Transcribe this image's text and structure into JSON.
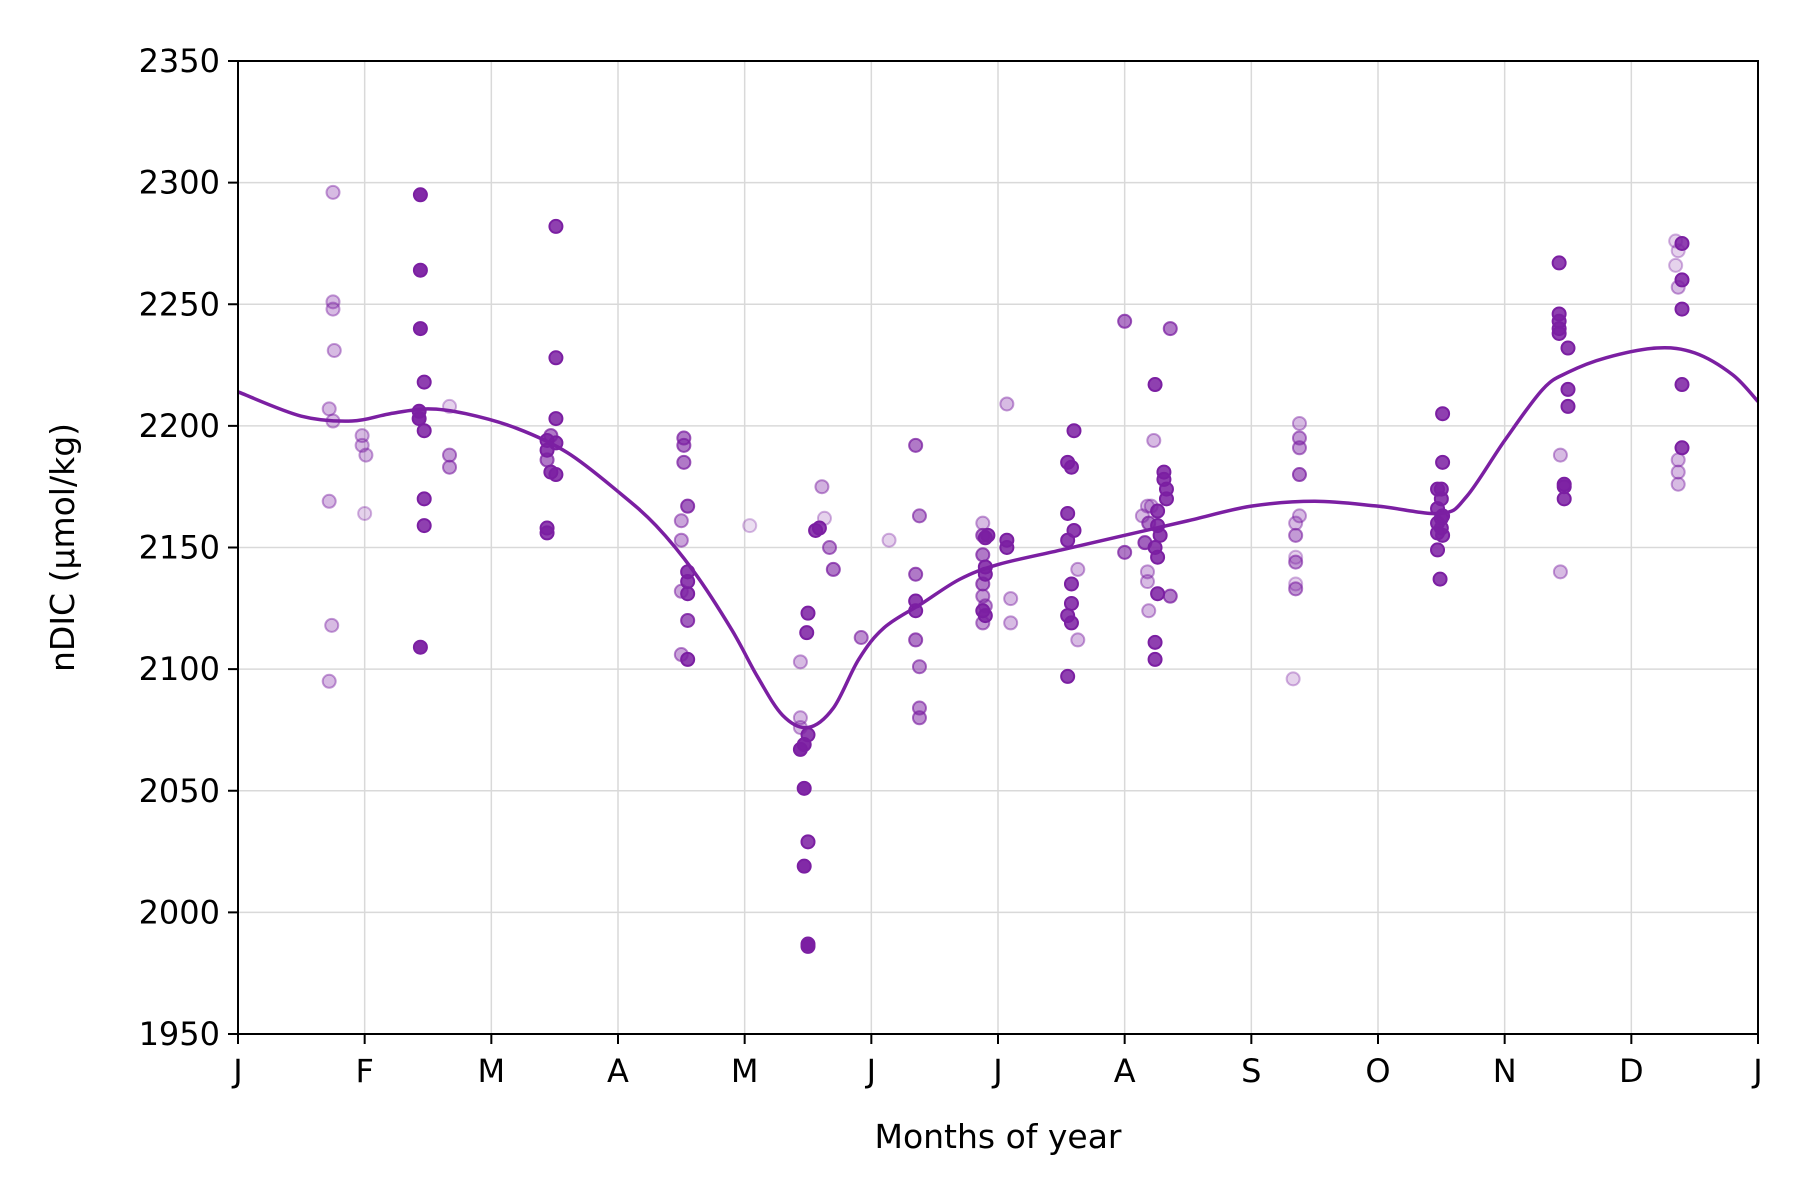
{
  "chart_data": {
    "type": "scatter",
    "title": "",
    "xlabel": "Months of year",
    "ylabel": "nDIC (μmol/kg)",
    "xlim": [
      0,
      12
    ],
    "ylim": [
      1950,
      2350
    ],
    "grid": true,
    "x_tick_labels": [
      "J",
      "F",
      "M",
      "A",
      "M",
      "J",
      "J",
      "A",
      "S",
      "O",
      "N",
      "D",
      "J"
    ],
    "y_ticks": [
      1950,
      2000,
      2050,
      2100,
      2150,
      2200,
      2250,
      2300,
      2350
    ],
    "colors": {
      "series": "#7b1fa2",
      "grid": "#d9d9d9",
      "axis": "#000000"
    },
    "points": [
      {
        "x": 0.75,
        "y": 2296,
        "a": 0.3
      },
      {
        "x": 0.75,
        "y": 2251,
        "a": 0.3
      },
      {
        "x": 0.75,
        "y": 2248,
        "a": 0.3
      },
      {
        "x": 0.76,
        "y": 2231,
        "a": 0.3
      },
      {
        "x": 0.72,
        "y": 2207,
        "a": 0.3
      },
      {
        "x": 0.75,
        "y": 2202,
        "a": 0.3
      },
      {
        "x": 0.72,
        "y": 2169,
        "a": 0.3
      },
      {
        "x": 0.74,
        "y": 2118,
        "a": 0.3
      },
      {
        "x": 0.72,
        "y": 2095,
        "a": 0.3
      },
      {
        "x": 0.98,
        "y": 2196,
        "a": 0.3
      },
      {
        "x": 0.98,
        "y": 2192,
        "a": 0.3
      },
      {
        "x": 1.01,
        "y": 2188,
        "a": 0.3
      },
      {
        "x": 1.0,
        "y": 2164,
        "a": 0.2
      },
      {
        "x": 1.44,
        "y": 2295,
        "a": 0.95
      },
      {
        "x": 1.44,
        "y": 2264,
        "a": 0.95
      },
      {
        "x": 1.44,
        "y": 2240,
        "a": 0.95
      },
      {
        "x": 1.47,
        "y": 2218,
        "a": 0.85
      },
      {
        "x": 1.43,
        "y": 2206,
        "a": 0.95
      },
      {
        "x": 1.43,
        "y": 2203,
        "a": 0.95
      },
      {
        "x": 1.47,
        "y": 2198,
        "a": 0.85
      },
      {
        "x": 1.47,
        "y": 2170,
        "a": 0.85
      },
      {
        "x": 1.47,
        "y": 2159,
        "a": 0.85
      },
      {
        "x": 1.44,
        "y": 2109,
        "a": 0.95
      },
      {
        "x": 1.67,
        "y": 2208,
        "a": 0.2
      },
      {
        "x": 1.67,
        "y": 2188,
        "a": 0.45
      },
      {
        "x": 1.67,
        "y": 2183,
        "a": 0.45
      },
      {
        "x": 2.44,
        "y": 2194,
        "a": 0.85
      },
      {
        "x": 2.44,
        "y": 2190,
        "a": 0.85
      },
      {
        "x": 2.47,
        "y": 2196,
        "a": 0.6
      },
      {
        "x": 2.44,
        "y": 2186,
        "a": 0.6
      },
      {
        "x": 2.47,
        "y": 2181,
        "a": 0.85
      },
      {
        "x": 2.44,
        "y": 2158,
        "a": 0.85
      },
      {
        "x": 2.44,
        "y": 2156,
        "a": 0.85
      },
      {
        "x": 2.51,
        "y": 2282,
        "a": 0.85
      },
      {
        "x": 2.51,
        "y": 2228,
        "a": 0.85
      },
      {
        "x": 2.51,
        "y": 2203,
        "a": 0.85
      },
      {
        "x": 2.51,
        "y": 2193,
        "a": 0.85
      },
      {
        "x": 2.51,
        "y": 2180,
        "a": 0.85
      },
      {
        "x": 3.52,
        "y": 2195,
        "a": 0.6
      },
      {
        "x": 3.52,
        "y": 2192,
        "a": 0.6
      },
      {
        "x": 3.52,
        "y": 2185,
        "a": 0.6
      },
      {
        "x": 3.55,
        "y": 2167,
        "a": 0.7
      },
      {
        "x": 3.5,
        "y": 2161,
        "a": 0.4
      },
      {
        "x": 3.5,
        "y": 2153,
        "a": 0.4
      },
      {
        "x": 3.55,
        "y": 2140,
        "a": 0.85
      },
      {
        "x": 3.55,
        "y": 2136,
        "a": 0.85
      },
      {
        "x": 3.5,
        "y": 2132,
        "a": 0.4
      },
      {
        "x": 3.55,
        "y": 2131,
        "a": 0.85
      },
      {
        "x": 3.55,
        "y": 2120,
        "a": 0.7
      },
      {
        "x": 3.5,
        "y": 2106,
        "a": 0.4
      },
      {
        "x": 3.55,
        "y": 2104,
        "a": 0.85
      },
      {
        "x": 4.04,
        "y": 2159,
        "a": 0.15
      },
      {
        "x": 4.44,
        "y": 2103,
        "a": 0.3
      },
      {
        "x": 4.44,
        "y": 2080,
        "a": 0.3
      },
      {
        "x": 4.44,
        "y": 2076,
        "a": 0.3
      },
      {
        "x": 4.5,
        "y": 2073,
        "a": 0.85
      },
      {
        "x": 4.44,
        "y": 2067,
        "a": 0.95
      },
      {
        "x": 4.47,
        "y": 2069,
        "a": 0.95
      },
      {
        "x": 4.47,
        "y": 2051,
        "a": 0.95
      },
      {
        "x": 4.5,
        "y": 2029,
        "a": 0.85
      },
      {
        "x": 4.47,
        "y": 2019,
        "a": 0.95
      },
      {
        "x": 4.5,
        "y": 1987,
        "a": 0.95
      },
      {
        "x": 4.5,
        "y": 1986,
        "a": 0.95
      },
      {
        "x": 4.5,
        "y": 2123,
        "a": 0.85
      },
      {
        "x": 4.49,
        "y": 2115,
        "a": 0.85
      },
      {
        "x": 4.56,
        "y": 2157,
        "a": 0.85
      },
      {
        "x": 4.59,
        "y": 2158,
        "a": 0.85
      },
      {
        "x": 4.63,
        "y": 2162,
        "a": 0.2
      },
      {
        "x": 4.61,
        "y": 2175,
        "a": 0.35
      },
      {
        "x": 4.67,
        "y": 2150,
        "a": 0.5
      },
      {
        "x": 4.7,
        "y": 2141,
        "a": 0.6
      },
      {
        "x": 4.92,
        "y": 2113,
        "a": 0.5
      },
      {
        "x": 5.14,
        "y": 2153,
        "a": 0.2
      },
      {
        "x": 5.35,
        "y": 2192,
        "a": 0.6
      },
      {
        "x": 5.38,
        "y": 2163,
        "a": 0.5
      },
      {
        "x": 5.35,
        "y": 2139,
        "a": 0.6
      },
      {
        "x": 5.35,
        "y": 2128,
        "a": 0.85
      },
      {
        "x": 5.35,
        "y": 2124,
        "a": 0.85
      },
      {
        "x": 5.35,
        "y": 2112,
        "a": 0.6
      },
      {
        "x": 5.38,
        "y": 2101,
        "a": 0.5
      },
      {
        "x": 5.38,
        "y": 2084,
        "a": 0.5
      },
      {
        "x": 5.38,
        "y": 2080,
        "a": 0.5
      },
      {
        "x": 5.88,
        "y": 2160,
        "a": 0.3
      },
      {
        "x": 5.88,
        "y": 2155,
        "a": 0.6
      },
      {
        "x": 5.9,
        "y": 2154,
        "a": 0.9
      },
      {
        "x": 5.92,
        "y": 2155,
        "a": 0.85
      },
      {
        "x": 5.88,
        "y": 2147,
        "a": 0.6
      },
      {
        "x": 5.9,
        "y": 2142,
        "a": 0.85
      },
      {
        "x": 5.9,
        "y": 2139,
        "a": 0.85
      },
      {
        "x": 5.88,
        "y": 2135,
        "a": 0.6
      },
      {
        "x": 5.88,
        "y": 2130,
        "a": 0.45
      },
      {
        "x": 5.9,
        "y": 2126,
        "a": 0.45
      },
      {
        "x": 5.88,
        "y": 2124,
        "a": 0.85
      },
      {
        "x": 5.9,
        "y": 2122,
        "a": 0.85
      },
      {
        "x": 5.88,
        "y": 2119,
        "a": 0.45
      },
      {
        "x": 6.07,
        "y": 2153,
        "a": 0.85
      },
      {
        "x": 6.07,
        "y": 2150,
        "a": 0.85
      },
      {
        "x": 6.07,
        "y": 2209,
        "a": 0.3
      },
      {
        "x": 6.1,
        "y": 2129,
        "a": 0.3
      },
      {
        "x": 6.1,
        "y": 2119,
        "a": 0.3
      },
      {
        "x": 6.55,
        "y": 2185,
        "a": 0.85
      },
      {
        "x": 6.58,
        "y": 2183,
        "a": 0.85
      },
      {
        "x": 6.6,
        "y": 2198,
        "a": 0.85
      },
      {
        "x": 6.55,
        "y": 2164,
        "a": 0.85
      },
      {
        "x": 6.6,
        "y": 2157,
        "a": 0.85
      },
      {
        "x": 6.55,
        "y": 2153,
        "a": 0.85
      },
      {
        "x": 6.58,
        "y": 2135,
        "a": 0.85
      },
      {
        "x": 6.63,
        "y": 2141,
        "a": 0.3
      },
      {
        "x": 6.58,
        "y": 2127,
        "a": 0.85
      },
      {
        "x": 6.55,
        "y": 2122,
        "a": 0.85
      },
      {
        "x": 6.58,
        "y": 2119,
        "a": 0.85
      },
      {
        "x": 6.63,
        "y": 2112,
        "a": 0.3
      },
      {
        "x": 6.55,
        "y": 2097,
        "a": 0.85
      },
      {
        "x": 7.0,
        "y": 2243,
        "a": 0.6
      },
      {
        "x": 7.0,
        "y": 2148,
        "a": 0.6
      },
      {
        "x": 7.23,
        "y": 2194,
        "a": 0.3
      },
      {
        "x": 7.24,
        "y": 2217,
        "a": 0.85
      },
      {
        "x": 7.21,
        "y": 2167,
        "a": 0.3
      },
      {
        "x": 7.18,
        "y": 2167,
        "a": 0.3
      },
      {
        "x": 7.26,
        "y": 2165,
        "a": 0.85
      },
      {
        "x": 7.14,
        "y": 2163,
        "a": 0.3
      },
      {
        "x": 7.19,
        "y": 2160,
        "a": 0.6
      },
      {
        "x": 7.26,
        "y": 2159,
        "a": 0.85
      },
      {
        "x": 7.28,
        "y": 2155,
        "a": 0.85
      },
      {
        "x": 7.16,
        "y": 2152,
        "a": 0.7
      },
      {
        "x": 7.24,
        "y": 2150,
        "a": 0.85
      },
      {
        "x": 7.26,
        "y": 2146,
        "a": 0.85
      },
      {
        "x": 7.18,
        "y": 2140,
        "a": 0.3
      },
      {
        "x": 7.18,
        "y": 2136,
        "a": 0.3
      },
      {
        "x": 7.26,
        "y": 2131,
        "a": 0.85
      },
      {
        "x": 7.19,
        "y": 2124,
        "a": 0.3
      },
      {
        "x": 7.24,
        "y": 2111,
        "a": 0.85
      },
      {
        "x": 7.24,
        "y": 2104,
        "a": 0.85
      },
      {
        "x": 7.31,
        "y": 2181,
        "a": 0.85
      },
      {
        "x": 7.31,
        "y": 2178,
        "a": 0.85
      },
      {
        "x": 7.33,
        "y": 2174,
        "a": 0.85
      },
      {
        "x": 7.33,
        "y": 2170,
        "a": 0.85
      },
      {
        "x": 7.36,
        "y": 2240,
        "a": 0.6
      },
      {
        "x": 7.36,
        "y": 2130,
        "a": 0.6
      },
      {
        "x": 8.38,
        "y": 2201,
        "a": 0.3
      },
      {
        "x": 8.38,
        "y": 2195,
        "a": 0.45
      },
      {
        "x": 8.38,
        "y": 2191,
        "a": 0.45
      },
      {
        "x": 8.38,
        "y": 2180,
        "a": 0.6
      },
      {
        "x": 8.38,
        "y": 2163,
        "a": 0.3
      },
      {
        "x": 8.35,
        "y": 2160,
        "a": 0.3
      },
      {
        "x": 8.35,
        "y": 2155,
        "a": 0.45
      },
      {
        "x": 8.35,
        "y": 2146,
        "a": 0.2
      },
      {
        "x": 8.35,
        "y": 2144,
        "a": 0.45
      },
      {
        "x": 8.35,
        "y": 2135,
        "a": 0.2
      },
      {
        "x": 8.35,
        "y": 2133,
        "a": 0.45
      },
      {
        "x": 8.33,
        "y": 2096,
        "a": 0.2
      },
      {
        "x": 9.51,
        "y": 2205,
        "a": 0.85
      },
      {
        "x": 9.51,
        "y": 2185,
        "a": 0.85
      },
      {
        "x": 9.5,
        "y": 2174,
        "a": 0.85
      },
      {
        "x": 9.47,
        "y": 2174,
        "a": 0.85
      },
      {
        "x": 9.5,
        "y": 2170,
        "a": 0.85
      },
      {
        "x": 9.47,
        "y": 2166,
        "a": 0.85
      },
      {
        "x": 9.51,
        "y": 2163,
        "a": 0.85
      },
      {
        "x": 9.5,
        "y": 2162,
        "a": 0.85
      },
      {
        "x": 9.47,
        "y": 2160,
        "a": 0.85
      },
      {
        "x": 9.5,
        "y": 2158,
        "a": 0.85
      },
      {
        "x": 9.47,
        "y": 2156,
        "a": 0.85
      },
      {
        "x": 9.51,
        "y": 2155,
        "a": 0.85
      },
      {
        "x": 9.47,
        "y": 2149,
        "a": 0.85
      },
      {
        "x": 9.49,
        "y": 2137,
        "a": 0.85
      },
      {
        "x": 10.43,
        "y": 2267,
        "a": 0.85
      },
      {
        "x": 10.43,
        "y": 2246,
        "a": 0.85
      },
      {
        "x": 10.43,
        "y": 2243,
        "a": 0.85
      },
      {
        "x": 10.43,
        "y": 2240,
        "a": 0.85
      },
      {
        "x": 10.43,
        "y": 2238,
        "a": 0.85
      },
      {
        "x": 10.5,
        "y": 2232,
        "a": 0.85
      },
      {
        "x": 10.5,
        "y": 2215,
        "a": 0.85
      },
      {
        "x": 10.5,
        "y": 2208,
        "a": 0.85
      },
      {
        "x": 10.44,
        "y": 2188,
        "a": 0.3
      },
      {
        "x": 10.47,
        "y": 2176,
        "a": 0.85
      },
      {
        "x": 10.47,
        "y": 2175,
        "a": 0.85
      },
      {
        "x": 10.47,
        "y": 2170,
        "a": 0.85
      },
      {
        "x": 10.44,
        "y": 2140,
        "a": 0.3
      },
      {
        "x": 11.35,
        "y": 2276,
        "a": 0.2
      },
      {
        "x": 11.37,
        "y": 2272,
        "a": 0.2
      },
      {
        "x": 11.35,
        "y": 2266,
        "a": 0.2
      },
      {
        "x": 11.37,
        "y": 2257,
        "a": 0.3
      },
      {
        "x": 11.37,
        "y": 2186,
        "a": 0.3
      },
      {
        "x": 11.37,
        "y": 2181,
        "a": 0.3
      },
      {
        "x": 11.37,
        "y": 2176,
        "a": 0.3
      },
      {
        "x": 11.4,
        "y": 2275,
        "a": 0.85
      },
      {
        "x": 11.4,
        "y": 2260,
        "a": 0.85
      },
      {
        "x": 11.4,
        "y": 2248,
        "a": 0.85
      },
      {
        "x": 11.4,
        "y": 2217,
        "a": 0.85
      },
      {
        "x": 11.4,
        "y": 2191,
        "a": 0.85
      }
    ],
    "fit_curve": {
      "x": [
        0,
        0.5,
        0.9,
        1.2,
        1.5,
        1.8,
        2.2,
        2.6,
        3.0,
        3.3,
        3.6,
        3.9,
        4.1,
        4.3,
        4.5,
        4.7,
        4.9,
        5.1,
        5.4,
        5.7,
        6.0,
        6.5,
        7.0,
        7.5,
        8.0,
        8.5,
        9.0,
        9.5,
        9.7,
        10.0,
        10.3,
        10.5,
        10.8,
        11.2,
        11.5,
        11.8,
        12.0
      ],
      "y": [
        2214,
        2204,
        2202,
        2205,
        2207,
        2205,
        2199,
        2189,
        2173,
        2159,
        2140,
        2116,
        2097,
        2081,
        2076,
        2084,
        2104,
        2117,
        2127,
        2137,
        2143,
        2149,
        2155,
        2161,
        2167,
        2169,
        2167,
        2164,
        2171,
        2194,
        2215,
        2222,
        2228,
        2232,
        2230,
        2221,
        2210
      ]
    }
  }
}
